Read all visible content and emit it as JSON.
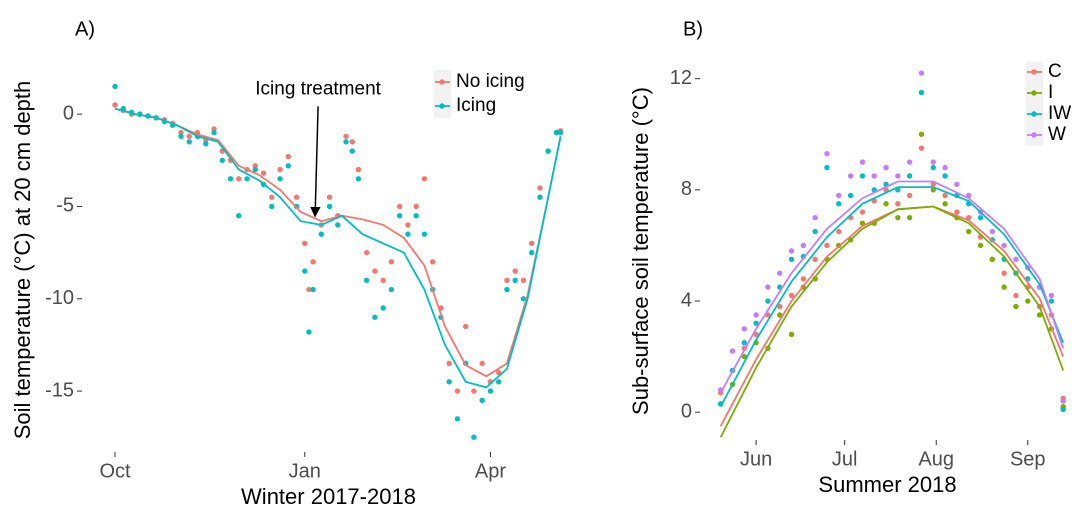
{
  "chart_data": [
    {
      "type": "scatter",
      "panel_label": "A)",
      "xlabel": "Winter 2017-2018",
      "ylabel": "Soil temperature (°C) at 20 cm depth",
      "xlim": [
        -16,
        223
      ],
      "ylim": [
        -18.3,
        2.5
      ],
      "xticks": [
        {
          "value": 0,
          "label": "Oct"
        },
        {
          "value": 92,
          "label": "Jan"
        },
        {
          "value": 182,
          "label": "Apr"
        }
      ],
      "yticks": [
        0,
        -5,
        -10,
        -15
      ],
      "legend_position": "top-right",
      "annotation": {
        "text": "Icing treatment",
        "x": 97,
        "y": -5.7
      },
      "x": [
        0,
        4,
        8,
        12,
        16,
        20,
        24,
        28,
        32,
        36,
        40,
        44,
        48,
        52,
        56,
        60,
        64,
        68,
        72,
        76,
        80,
        84,
        88,
        92,
        94,
        96,
        100,
        104,
        108,
        112,
        115,
        118,
        122,
        126,
        130,
        134,
        138,
        142,
        146,
        150,
        154,
        158,
        162,
        166,
        170,
        174,
        178,
        182,
        186,
        190,
        194,
        198,
        202,
        206,
        210,
        214,
        216
      ],
      "smooth_x": [
        0,
        10,
        20,
        30,
        40,
        50,
        60,
        70,
        80,
        90,
        100,
        110,
        120,
        130,
        140,
        150,
        160,
        170,
        180,
        190,
        200,
        210,
        216
      ],
      "series": [
        {
          "name": "No icing",
          "color": "#F8766D",
          "values": [
            0.5,
            0.2,
            0,
            0,
            -0.1,
            -0.2,
            -0.3,
            -0.5,
            -1.0,
            -1.2,
            -1.0,
            -1.4,
            -0.8,
            -2.0,
            -2.5,
            -3.5,
            -3.0,
            -2.8,
            -3.2,
            -4.5,
            -3.0,
            -2.3,
            -4.5,
            -7.0,
            -9.5,
            -8.0,
            -6.0,
            -4.5,
            -5.5,
            -1.2,
            -1.5,
            -3.0,
            -7.5,
            -8.5,
            -9.0,
            -8.0,
            -5.0,
            -6.0,
            -5.0,
            -3.5,
            -8.0,
            -10.5,
            -13.5,
            -15.0,
            -11.5,
            -15.0,
            -13.5,
            -14.5,
            -14.0,
            -9.0,
            -8.5,
            -9.0,
            -7.0,
            -4.0,
            -2.0,
            -1.0,
            -0.9
          ],
          "smooth": [
            0.3,
            0,
            -0.2,
            -0.6,
            -1.1,
            -1.4,
            -2.8,
            -3.3,
            -4.1,
            -5.3,
            -5.8,
            -5.5,
            -5.7,
            -6.0,
            -6.7,
            -8.2,
            -11.5,
            -13.6,
            -14.2,
            -13.5,
            -9.8,
            -4.5,
            -1.2
          ]
        },
        {
          "name": "Icing",
          "color": "#00BFC4",
          "values": [
            1.5,
            0.3,
            0.1,
            0,
            -0.1,
            -0.2,
            -0.4,
            -0.6,
            -1.2,
            -1.5,
            -1.2,
            -1.6,
            -1.0,
            -2.5,
            -3.5,
            -5.5,
            -3.5,
            -3.0,
            -3.8,
            -5.0,
            -3.5,
            -2.8,
            -5.0,
            -8.5,
            -11.8,
            -9.5,
            -6.5,
            -5.0,
            -6.0,
            -1.5,
            -2.0,
            -3.5,
            -9.0,
            -11.0,
            -10.5,
            -9.5,
            -5.5,
            -6.5,
            -5.5,
            -6.5,
            -9.5,
            -11.0,
            -14.5,
            -16.5,
            -13.5,
            -17.5,
            -15.5,
            -15.0,
            -14.5,
            -9.5,
            -9.0,
            -10.0,
            -7.5,
            -4.5,
            -2.0,
            -1.0,
            -1.0
          ],
          "smooth": [
            0.3,
            0,
            -0.2,
            -0.6,
            -1.2,
            -1.5,
            -3.0,
            -3.6,
            -4.5,
            -5.8,
            -6.0,
            -5.5,
            -6.5,
            -7.0,
            -7.5,
            -9.5,
            -12.5,
            -14.5,
            -14.8,
            -13.8,
            -10.0,
            -4.5,
            -1.2
          ]
        }
      ]
    },
    {
      "type": "scatter",
      "panel_label": "B)",
      "xlabel": "Summer 2018",
      "ylabel": "Sub-surface soil temperature (°C)",
      "xlim": [
        133,
        260
      ],
      "ylim": [
        -1,
        12.6
      ],
      "xticks": [
        {
          "value": 152,
          "label": "Jun"
        },
        {
          "value": 182,
          "label": "Jul"
        },
        {
          "value": 213,
          "label": "Aug"
        },
        {
          "value": 244,
          "label": "Sep"
        }
      ],
      "yticks": [
        0,
        4,
        8,
        12
      ],
      "legend_position": "top-right",
      "x": [
        140,
        144,
        148,
        152,
        156,
        160,
        164,
        168,
        172,
        176,
        180,
        184,
        188,
        192,
        196,
        200,
        204,
        208,
        212,
        216,
        220,
        224,
        228,
        232,
        236,
        240,
        244,
        248,
        252,
        256
      ],
      "smooth_x": [
        140,
        152,
        164,
        176,
        188,
        200,
        212,
        224,
        236,
        248,
        256
      ],
      "series": [
        {
          "name": "C",
          "color": "#F8766D",
          "values": [
            0.7,
            1.5,
            2.3,
            2.8,
            3.5,
            3.8,
            4.2,
            4.8,
            5.5,
            6.0,
            6.5,
            7.0,
            7.2,
            7.6,
            8.0,
            7.5,
            7.8,
            9.5,
            8.2,
            7.8,
            7.2,
            7.0,
            6.3,
            5.5,
            5.0,
            4.2,
            4.5,
            3.8,
            3.5,
            0.5
          ],
          "smooth": [
            -0.5,
            1.9,
            4.0,
            5.6,
            6.7,
            7.3,
            7.4,
            6.9,
            5.8,
            4.1,
            2.0
          ]
        },
        {
          "name": "I",
          "color": "#7CAE00",
          "values": [
            0.3,
            1.0,
            2.0,
            2.5,
            2.3,
            3.5,
            2.8,
            4.5,
            4.8,
            5.5,
            6.0,
            6.2,
            6.8,
            6.8,
            7.5,
            7.0,
            7.0,
            10.0,
            8.0,
            7.5,
            7.0,
            6.5,
            6.0,
            5.5,
            4.5,
            3.8,
            4.0,
            3.5,
            3.0,
            0.2
          ],
          "smooth": [
            -0.9,
            1.6,
            3.8,
            5.4,
            6.6,
            7.3,
            7.4,
            6.8,
            5.6,
            3.8,
            1.5
          ]
        },
        {
          "name": "IW",
          "color": "#00BFC4",
          "values": [
            0.3,
            1.5,
            2.5,
            3.2,
            4.0,
            4.5,
            5.5,
            5.6,
            6.5,
            8.8,
            7.5,
            7.8,
            8.5,
            8.0,
            8.2,
            8.0,
            8.5,
            11.5,
            8.8,
            8.5,
            7.8,
            7.5,
            7.0,
            6.2,
            5.5,
            5.0,
            4.8,
            4.5,
            4.0,
            0.1
          ],
          "smooth": [
            0.2,
            2.6,
            4.7,
            6.3,
            7.5,
            8.1,
            8.1,
            7.6,
            6.4,
            4.6,
            2.5
          ]
        },
        {
          "name": "W",
          "color": "#C77CFF",
          "values": [
            0.8,
            2.2,
            3.0,
            3.5,
            4.5,
            5.0,
            5.8,
            6.0,
            7.0,
            9.3,
            7.8,
            8.5,
            9.0,
            8.5,
            8.8,
            8.5,
            9.0,
            12.2,
            9.0,
            8.8,
            8.2,
            7.8,
            7.2,
            6.5,
            6.0,
            5.5,
            5.2,
            4.5,
            4.2,
            0.4
          ],
          "smooth": [
            0.7,
            3.0,
            5.0,
            6.6,
            7.7,
            8.3,
            8.3,
            7.7,
            6.6,
            4.8,
            2.3
          ]
        }
      ]
    }
  ]
}
